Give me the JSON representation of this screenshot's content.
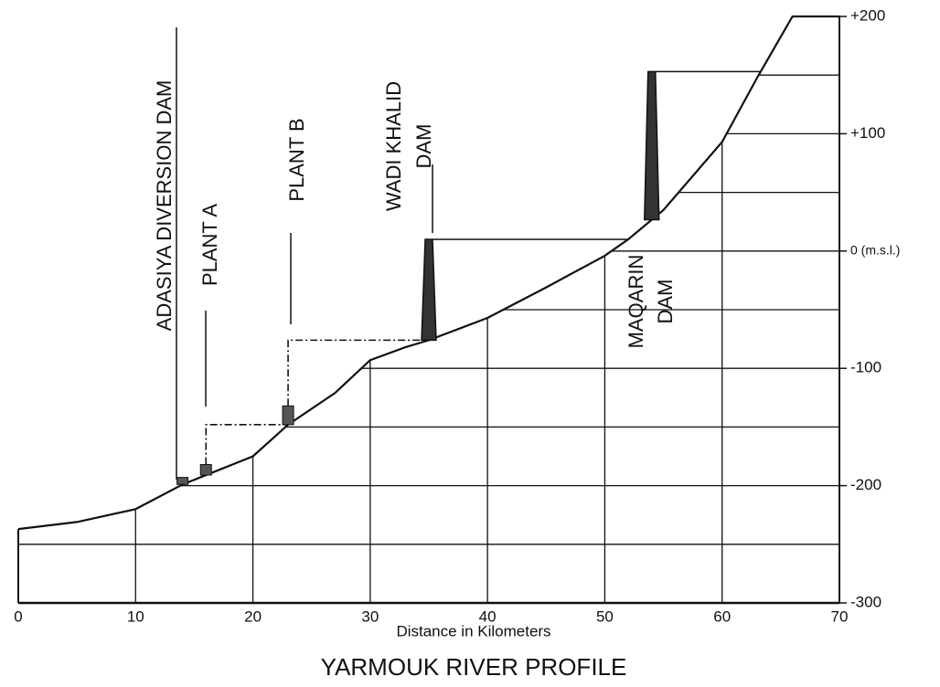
{
  "chart_data": {
    "type": "profile",
    "title": "YARMOUK RIVER PROFILE",
    "x_label": "Distance in Kilometers",
    "x": [
      0,
      5,
      10,
      14,
      16,
      20,
      23,
      27,
      30,
      33,
      35,
      40,
      45,
      50,
      52,
      55,
      60,
      63,
      66,
      70
    ],
    "y": [
      -237,
      -231,
      -220,
      -199,
      -191,
      -175,
      -148,
      -121,
      -93,
      -82,
      -76,
      -57,
      -31,
      -4,
      10,
      35,
      93,
      148,
      200,
      200
    ],
    "xlim": [
      0,
      70
    ],
    "ylim": [
      -300,
      200
    ],
    "xticks": [
      0,
      10,
      20,
      30,
      40,
      50,
      60,
      70
    ],
    "yticks": [
      {
        "value": 200,
        "label": "+200"
      },
      {
        "value": 100,
        "label": "+100"
      },
      {
        "value": 0,
        "label": "0 (m.s.l.)"
      },
      -100,
      -200,
      -300
    ],
    "minor_yticks": [
      150,
      50,
      -50,
      -150,
      -250
    ],
    "color": "#111111",
    "structures": [
      {
        "label": [
          "ADASIYA DIVERSION DAM"
        ],
        "x": 14,
        "top": -193,
        "shape": "box"
      },
      {
        "label": [
          "PLANT A"
        ],
        "x": 16,
        "top": -182,
        "shape": "box"
      },
      {
        "label": [
          "PLANT B"
        ],
        "x": 23,
        "top": -132,
        "shape": "box"
      },
      {
        "label": [
          "WADI KHALID",
          "DAM"
        ],
        "x": 35,
        "top": 10,
        "shape": "tower"
      },
      {
        "label": [
          "MAQARIN",
          "DAM"
        ],
        "x": 54,
        "top": 153,
        "shape": "tower"
      }
    ]
  }
}
